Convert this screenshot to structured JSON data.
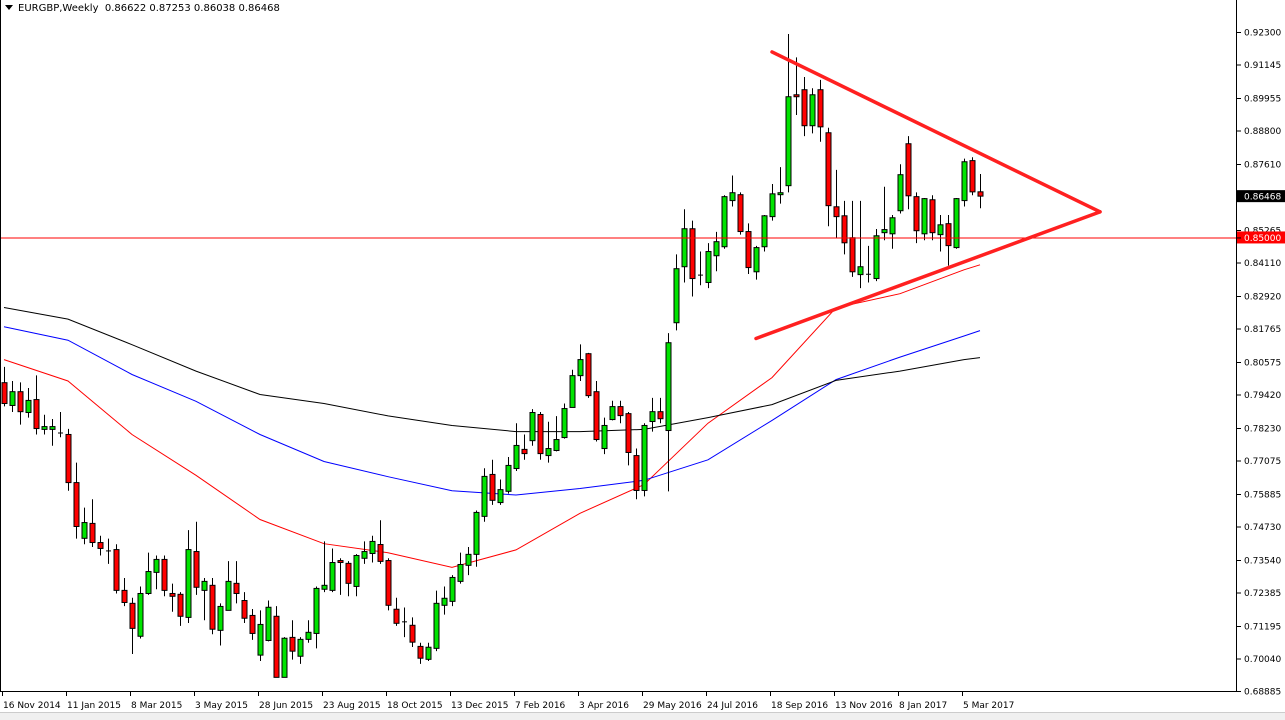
{
  "header": {
    "symbol": "EURGBP,Weekly",
    "ohlc": "0.86622 0.87253 0.86038 0.86468"
  },
  "chart_data": {
    "type": "candlestick",
    "title": "EURGBP,Weekly",
    "timeframe": "Weekly",
    "ylim": [
      0.68885,
      0.923
    ],
    "grid": false,
    "colors": {
      "bull": "#00e400",
      "bear": "#ff0000",
      "outline": "#000000",
      "ma_fast": "#ff0000",
      "ma_mid": "#0000ff",
      "ma_slow": "#000000",
      "trendline": "#ff2020",
      "level": "#ff0000"
    },
    "y_ticks": [
      "0.92300",
      "0.91145",
      "0.89955",
      "0.88800",
      "0.87610",
      "0.86468",
      "0.85265",
      "0.85000",
      "0.84110",
      "0.82920",
      "0.81765",
      "0.80575",
      "0.79420",
      "0.78230",
      "0.77075",
      "0.75885",
      "0.74730",
      "0.73540",
      "0.72385",
      "0.71195",
      "0.70040",
      "0.68885"
    ],
    "x_ticks": [
      "16 Nov 2014",
      "11 Jan 2015",
      "8 Mar 2015",
      "3 May 2015",
      "28 Jun 2015",
      "23 Aug 2015",
      "18 Oct 2015",
      "13 Dec 2015",
      "7 Feb 2016",
      "3 Apr 2016",
      "29 May 2016",
      "24 Jul 2016",
      "18 Sep 2016",
      "13 Nov 2016",
      "8 Jan 2017",
      "5 Mar 2017"
    ],
    "current_price": {
      "value": 0.86468,
      "label": "0.86468"
    },
    "horizontal_level": {
      "value": 0.85,
      "label": "0.85000"
    },
    "candles_ohlc": [
      [
        0.7984,
        0.804,
        0.79,
        0.791
      ],
      [
        0.7903,
        0.799,
        0.788,
        0.7952
      ],
      [
        0.7952,
        0.7985,
        0.7835,
        0.7881
      ],
      [
        0.7878,
        0.7965,
        0.786,
        0.7921
      ],
      [
        0.7924,
        0.801,
        0.78,
        0.7821
      ],
      [
        0.7818,
        0.787,
        0.78,
        0.7828
      ],
      [
        0.7818,
        0.7855,
        0.776,
        0.7828
      ],
      [
        0.7807,
        0.788,
        0.779,
        0.7807
      ],
      [
        0.78,
        0.782,
        0.76,
        0.7629
      ],
      [
        0.7629,
        0.77,
        0.743,
        0.7473
      ],
      [
        0.7431,
        0.754,
        0.741,
        0.7487
      ],
      [
        0.7484,
        0.757,
        0.74,
        0.7416
      ],
      [
        0.7416,
        0.744,
        0.737,
        0.7395
      ],
      [
        0.7388,
        0.743,
        0.734,
        0.7388
      ],
      [
        0.7391,
        0.741,
        0.7235,
        0.7246
      ],
      [
        0.7246,
        0.729,
        0.719,
        0.7203
      ],
      [
        0.72,
        0.722,
        0.702,
        0.7111
      ],
      [
        0.7083,
        0.726,
        0.7075,
        0.7235
      ],
      [
        0.7235,
        0.738,
        0.723,
        0.7313
      ],
      [
        0.731,
        0.737,
        0.725,
        0.7356
      ],
      [
        0.7356,
        0.737,
        0.7225,
        0.7246
      ],
      [
        0.7235,
        0.727,
        0.717,
        0.7225
      ],
      [
        0.7232,
        0.724,
        0.712,
        0.7154
      ],
      [
        0.715,
        0.746,
        0.713,
        0.7391
      ],
      [
        0.7384,
        0.749,
        0.723,
        0.7257
      ],
      [
        0.7246,
        0.729,
        0.714,
        0.7278
      ],
      [
        0.7264,
        0.729,
        0.709,
        0.7108
      ],
      [
        0.7104,
        0.72,
        0.705,
        0.7189
      ],
      [
        0.7175,
        0.735,
        0.7175,
        0.7278
      ],
      [
        0.7271,
        0.735,
        0.72,
        0.7235
      ],
      [
        0.721,
        0.724,
        0.713,
        0.7147
      ],
      [
        0.7157,
        0.718,
        0.707,
        0.7093
      ],
      [
        0.7016,
        0.7175,
        0.6995,
        0.7125
      ],
      [
        0.7068,
        0.721,
        0.7065,
        0.7186
      ],
      [
        0.7154,
        0.719,
        0.6937,
        0.6937
      ],
      [
        0.6937,
        0.708,
        0.6937,
        0.7076
      ],
      [
        0.7079,
        0.714,
        0.7,
        0.703
      ],
      [
        0.7012,
        0.708,
        0.6985,
        0.7072
      ],
      [
        0.7072,
        0.714,
        0.706,
        0.7097
      ],
      [
        0.7093,
        0.726,
        0.704,
        0.7253
      ],
      [
        0.725,
        0.742,
        0.724,
        0.7264
      ],
      [
        0.7246,
        0.7395,
        0.724,
        0.7345
      ],
      [
        0.7352,
        0.736,
        0.723,
        0.7345
      ],
      [
        0.7342,
        0.735,
        0.7225,
        0.7271
      ],
      [
        0.726,
        0.7375,
        0.7225,
        0.737
      ],
      [
        0.736,
        0.742,
        0.734,
        0.7384
      ],
      [
        0.7377,
        0.744,
        0.7345,
        0.742
      ],
      [
        0.7409,
        0.7495,
        0.734,
        0.7349
      ],
      [
        0.7352,
        0.736,
        0.7175,
        0.7193
      ],
      [
        0.7179,
        0.722,
        0.712,
        0.7129
      ],
      [
        0.7136,
        0.7185,
        0.708,
        0.7136
      ],
      [
        0.7122,
        0.715,
        0.7045,
        0.7062
      ],
      [
        0.7047,
        0.706,
        0.6985,
        0.7005
      ],
      [
        0.7001,
        0.706,
        0.6995,
        0.7044
      ],
      [
        0.704,
        0.7245,
        0.703,
        0.72
      ],
      [
        0.7193,
        0.726,
        0.716,
        0.7218
      ],
      [
        0.7207,
        0.73,
        0.719,
        0.7292
      ],
      [
        0.7278,
        0.738,
        0.727,
        0.7338
      ],
      [
        0.7335,
        0.74,
        0.73,
        0.7374
      ],
      [
        0.7374,
        0.753,
        0.733,
        0.7523
      ],
      [
        0.7509,
        0.768,
        0.749,
        0.7651
      ],
      [
        0.7658,
        0.771,
        0.755,
        0.7566
      ],
      [
        0.7558,
        0.764,
        0.755,
        0.7604
      ],
      [
        0.7598,
        0.772,
        0.759,
        0.769
      ],
      [
        0.7679,
        0.784,
        0.767,
        0.7761
      ],
      [
        0.7747,
        0.78,
        0.771,
        0.7732
      ],
      [
        0.7778,
        0.789,
        0.776,
        0.7878
      ],
      [
        0.7871,
        0.788,
        0.771,
        0.7732
      ],
      [
        0.7725,
        0.7845,
        0.77,
        0.775
      ],
      [
        0.7743,
        0.7865,
        0.774,
        0.7782
      ],
      [
        0.7789,
        0.791,
        0.7785,
        0.7892
      ],
      [
        0.7896,
        0.803,
        0.79,
        0.8009
      ],
      [
        0.8009,
        0.812,
        0.799,
        0.8066
      ],
      [
        0.8087,
        0.809,
        0.793,
        0.7938
      ],
      [
        0.7952,
        0.799,
        0.7775,
        0.7782
      ],
      [
        0.775,
        0.786,
        0.773,
        0.7832
      ],
      [
        0.7853,
        0.792,
        0.785,
        0.7899
      ],
      [
        0.7899,
        0.792,
        0.784,
        0.7867
      ],
      [
        0.7874,
        0.788,
        0.769,
        0.7736
      ],
      [
        0.7725,
        0.775,
        0.757,
        0.7601
      ],
      [
        0.7601,
        0.784,
        0.758,
        0.7832
      ],
      [
        0.7846,
        0.793,
        0.781,
        0.7881
      ],
      [
        0.7881,
        0.793,
        0.784,
        0.7856
      ],
      [
        0.7814,
        0.816,
        0.7598,
        0.8126
      ],
      [
        0.8197,
        0.844,
        0.817,
        0.8389
      ],
      [
        0.8396,
        0.86,
        0.834,
        0.8531
      ],
      [
        0.8531,
        0.856,
        0.829,
        0.8354
      ],
      [
        0.8368,
        0.845,
        0.833,
        0.8368
      ],
      [
        0.834,
        0.848,
        0.832,
        0.845
      ],
      [
        0.8435,
        0.852,
        0.838,
        0.8485
      ],
      [
        0.8467,
        0.865,
        0.846,
        0.8645
      ],
      [
        0.8631,
        0.872,
        0.861,
        0.8659
      ],
      [
        0.8652,
        0.866,
        0.851,
        0.8521
      ],
      [
        0.8521,
        0.855,
        0.837,
        0.8393
      ],
      [
        0.8378,
        0.847,
        0.835,
        0.8464
      ],
      [
        0.8467,
        0.858,
        0.845,
        0.8577
      ],
      [
        0.8574,
        0.869,
        0.856,
        0.8655
      ],
      [
        0.8652,
        0.875,
        0.862,
        0.8659
      ],
      [
        0.8684,
        0.9223,
        0.866,
        0.9
      ],
      [
        0.9007,
        0.914,
        0.8935,
        0.9
      ],
      [
        0.9025,
        0.907,
        0.886,
        0.8897
      ],
      [
        0.8897,
        0.903,
        0.887,
        0.9007
      ],
      [
        0.9025,
        0.906,
        0.884,
        0.8893
      ],
      [
        0.8872,
        0.889,
        0.854,
        0.8613
      ],
      [
        0.8609,
        0.874,
        0.85,
        0.8574
      ],
      [
        0.8577,
        0.863,
        0.844,
        0.8481
      ],
      [
        0.8499,
        0.863,
        0.836,
        0.8378
      ],
      [
        0.8368,
        0.863,
        0.832,
        0.8396
      ],
      [
        0.8371,
        0.847,
        0.834,
        0.8371
      ],
      [
        0.8354,
        0.853,
        0.8345,
        0.8506
      ],
      [
        0.8517,
        0.868,
        0.849,
        0.8528
      ],
      [
        0.8513,
        0.858,
        0.846,
        0.857
      ],
      [
        0.8595,
        0.876,
        0.8585,
        0.8723
      ],
      [
        0.8833,
        0.886,
        0.86,
        0.8648
      ],
      [
        0.8645,
        0.866,
        0.848,
        0.8524
      ],
      [
        0.8513,
        0.864,
        0.849,
        0.8638
      ],
      [
        0.8634,
        0.865,
        0.849,
        0.8517
      ],
      [
        0.851,
        0.858,
        0.845,
        0.8545
      ],
      [
        0.8549,
        0.858,
        0.84,
        0.8471
      ],
      [
        0.8464,
        0.864,
        0.846,
        0.8638
      ],
      [
        0.8631,
        0.878,
        0.861,
        0.8769
      ],
      [
        0.8773,
        0.8785,
        0.865,
        0.8662
      ],
      [
        0.86622,
        0.87253,
        0.86038,
        0.86468
      ]
    ],
    "moving_averages": [
      {
        "color": "#ff0000",
        "points": [
          [
            "16 Nov 2014",
            0.8066
          ],
          [
            "11 Jan 2015",
            0.799
          ],
          [
            "8 Mar 2015",
            0.78
          ],
          [
            "3 May 2015",
            0.7655
          ],
          [
            "28 Jun 2015",
            0.7498
          ],
          [
            "23 Aug 2015",
            0.7412
          ],
          [
            "18 Oct 2015",
            0.738
          ],
          [
            "13 Dec 2015",
            0.7328
          ],
          [
            "7 Feb 2016",
            0.739
          ],
          [
            "3 Apr 2016",
            0.752
          ],
          [
            "29 May 2016",
            0.7622
          ],
          [
            "24 Jul 2016",
            0.784
          ],
          [
            "18 Sep 2016",
            0.8002
          ],
          [
            "13 Nov 2016",
            0.825
          ],
          [
            "8 Jan 2017",
            0.83
          ],
          [
            "5 Mar 2017",
            0.8385
          ],
          [
            "19 Mar 2017",
            0.8403
          ]
        ]
      },
      {
        "color": "#0000ff",
        "points": [
          [
            "16 Nov 2014",
            0.8183
          ],
          [
            "11 Jan 2015",
            0.8135
          ],
          [
            "8 Mar 2015",
            0.8013
          ],
          [
            "3 May 2015",
            0.7918
          ],
          [
            "28 Jun 2015",
            0.78
          ],
          [
            "23 Aug 2015",
            0.7704
          ],
          [
            "18 Oct 2015",
            0.765
          ],
          [
            "13 Dec 2015",
            0.76
          ],
          [
            "7 Feb 2016",
            0.7585
          ],
          [
            "3 Apr 2016",
            0.7608
          ],
          [
            "29 May 2016",
            0.7637
          ],
          [
            "24 Jul 2016",
            0.771
          ],
          [
            "18 Sep 2016",
            0.785
          ],
          [
            "13 Nov 2016",
            0.7995
          ],
          [
            "8 Jan 2017",
            0.8075
          ],
          [
            "5 Mar 2017",
            0.815
          ],
          [
            "19 Mar 2017",
            0.8169
          ]
        ]
      },
      {
        "color": "#000000",
        "points": [
          [
            "16 Nov 2014",
            0.8251
          ],
          [
            "11 Jan 2015",
            0.821
          ],
          [
            "8 Mar 2015",
            0.8119
          ],
          [
            "3 May 2015",
            0.8025
          ],
          [
            "28 Jun 2015",
            0.7942
          ],
          [
            "23 Aug 2015",
            0.791
          ],
          [
            "18 Oct 2015",
            0.7866
          ],
          [
            "13 Dec 2015",
            0.7832
          ],
          [
            "7 Feb 2016",
            0.781
          ],
          [
            "3 Apr 2016",
            0.781
          ],
          [
            "29 May 2016",
            0.7818
          ],
          [
            "24 Jul 2016",
            0.786
          ],
          [
            "18 Sep 2016",
            0.7906
          ],
          [
            "13 Nov 2016",
            0.7992
          ],
          [
            "8 Jan 2017",
            0.8025
          ],
          [
            "5 Mar 2017",
            0.8066
          ],
          [
            "19 Mar 2017",
            0.8073
          ]
        ]
      }
    ],
    "trendlines": [
      {
        "from": [
          "18 Sep 2016",
          0.9159
        ],
        "to": [
          "2 Jul 2017",
          0.8591
        ]
      },
      {
        "from": [
          "4 Sep 2016",
          0.8141
        ],
        "to": [
          "2 Jul 2017",
          0.8591
        ]
      }
    ]
  }
}
